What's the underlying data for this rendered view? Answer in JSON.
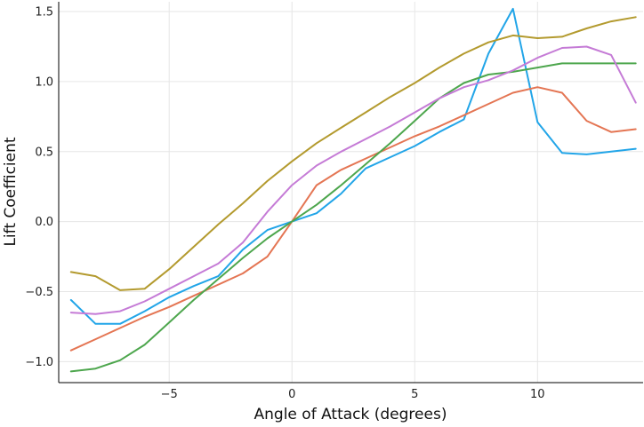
{
  "chart_data": {
    "type": "line",
    "title": "",
    "xlabel": "Angle of Attack (degrees)",
    "ylabel": "Lift Coefficient",
    "xlim": [
      -9.5,
      14.3
    ],
    "ylim": [
      -1.15,
      1.57
    ],
    "xticks": [
      -5,
      0,
      5,
      10
    ],
    "xtick_labels": [
      "−5",
      "0",
      "5",
      "10"
    ],
    "yticks": [
      -1.0,
      -0.5,
      0.0,
      0.5,
      1.0,
      1.5
    ],
    "ytick_labels": [
      "−1.0",
      "−0.5",
      "0.0",
      "0.5",
      "1.0",
      "1.5"
    ],
    "grid": true,
    "legend": "none",
    "x": [
      -9,
      -8,
      -7,
      -6,
      -5,
      -4,
      -3,
      -2,
      -1,
      0,
      1,
      2,
      3,
      4,
      5,
      6,
      7,
      8,
      9,
      10,
      11,
      12,
      13,
      14
    ],
    "series": [
      {
        "color": "#22a5e8",
        "values": [
          -0.56,
          -0.73,
          -0.73,
          -0.64,
          -0.54,
          -0.46,
          -0.39,
          -0.2,
          -0.06,
          0.0,
          0.06,
          0.2,
          0.38,
          0.46,
          0.54,
          0.64,
          0.73,
          1.2,
          1.52,
          0.71,
          0.49,
          0.48,
          0.5,
          0.52
        ]
      },
      {
        "color": "#e47553",
        "values": [
          -0.92,
          -0.84,
          -0.76,
          -0.68,
          -0.61,
          -0.53,
          -0.45,
          -0.37,
          -0.25,
          0.0,
          0.26,
          0.37,
          0.45,
          0.53,
          0.61,
          0.68,
          0.76,
          0.84,
          0.92,
          0.96,
          0.92,
          0.72,
          0.64,
          0.66
        ]
      },
      {
        "color": "#4da64d",
        "values": [
          -1.07,
          -1.05,
          -0.99,
          -0.88,
          -0.72,
          -0.56,
          -0.41,
          -0.26,
          -0.12,
          0.0,
          0.12,
          0.26,
          0.41,
          0.56,
          0.72,
          0.88,
          0.99,
          1.05,
          1.07,
          1.1,
          1.13,
          1.13,
          1.13,
          1.13
        ]
      },
      {
        "color": "#c57bd6",
        "values": [
          -0.65,
          -0.66,
          -0.64,
          -0.57,
          -0.48,
          -0.39,
          -0.3,
          -0.15,
          0.07,
          0.26,
          0.4,
          0.5,
          0.59,
          0.68,
          0.78,
          0.88,
          0.96,
          1.01,
          1.08,
          1.17,
          1.24,
          1.25,
          1.19,
          0.85
        ]
      },
      {
        "color": "#b39a2e",
        "values": [
          -0.36,
          -0.39,
          -0.49,
          -0.48,
          -0.34,
          -0.18,
          -0.02,
          0.13,
          0.29,
          0.43,
          0.56,
          0.67,
          0.78,
          0.89,
          0.99,
          1.1,
          1.2,
          1.28,
          1.33,
          1.31,
          1.32,
          1.38,
          1.43,
          1.46
        ]
      }
    ]
  }
}
